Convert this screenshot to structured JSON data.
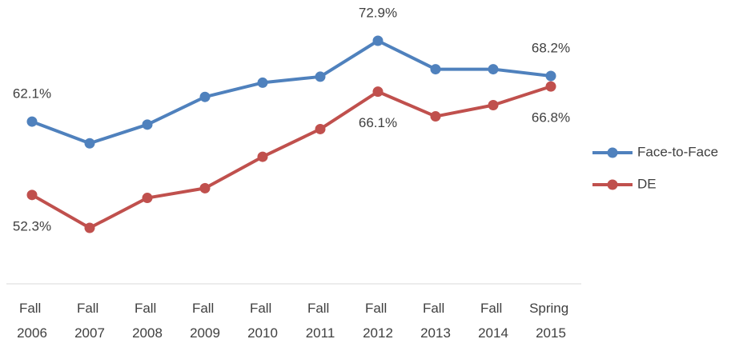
{
  "chart_data": {
    "type": "line",
    "categories": [
      "Fall 2006",
      "Fall 2007",
      "Fall 2008",
      "Fall 2009",
      "Fall 2010",
      "Fall 2011",
      "Fall 2012",
      "Fall 2013",
      "Fall 2014",
      "Spring 2015"
    ],
    "series": [
      {
        "name": "Face-to-Face",
        "color": "#4f81bd",
        "values": [
          62.1,
          59.2,
          61.7,
          65.4,
          67.3,
          68.1,
          72.9,
          69.1,
          69.1,
          68.2
        ],
        "value_labels": [
          "62.1%",
          null,
          null,
          null,
          null,
          null,
          "72.9%",
          null,
          null,
          "68.2%"
        ]
      },
      {
        "name": "DE",
        "color": "#c0504d",
        "values": [
          52.3,
          47.9,
          51.9,
          53.2,
          57.4,
          61.1,
          66.1,
          62.8,
          64.3,
          66.8
        ],
        "value_labels": [
          "52.3%",
          null,
          null,
          null,
          null,
          null,
          "66.1%",
          null,
          null,
          "66.8%"
        ]
      }
    ],
    "legend": "right"
  }
}
